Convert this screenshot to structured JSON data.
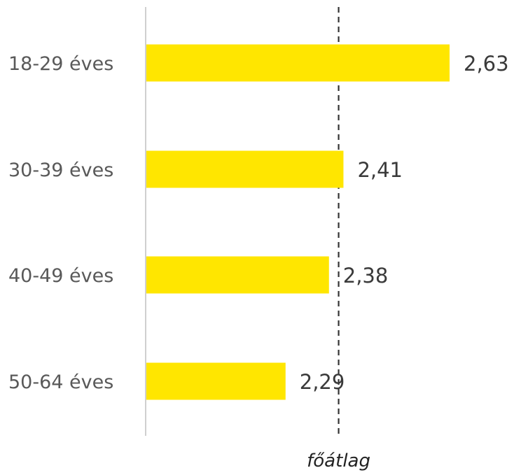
{
  "chart_data": {
    "type": "bar",
    "orientation": "horizontal",
    "categories": [
      "18-29 éves",
      "30-39 éves",
      "40-49 éves",
      "50-64 éves"
    ],
    "values": [
      2.63,
      2.41,
      2.38,
      2.29
    ],
    "value_labels": [
      "2,63",
      "2,41",
      "2,38",
      "2,29"
    ],
    "xlim": [
      2.0,
      2.63
    ],
    "reference_line": {
      "label": "főátlag",
      "value": 2.4,
      "style": "dashed"
    },
    "grid": false,
    "bar_color": "#FFE600",
    "axis_color": "#CFCFCF",
    "reference_color": "#333333"
  }
}
